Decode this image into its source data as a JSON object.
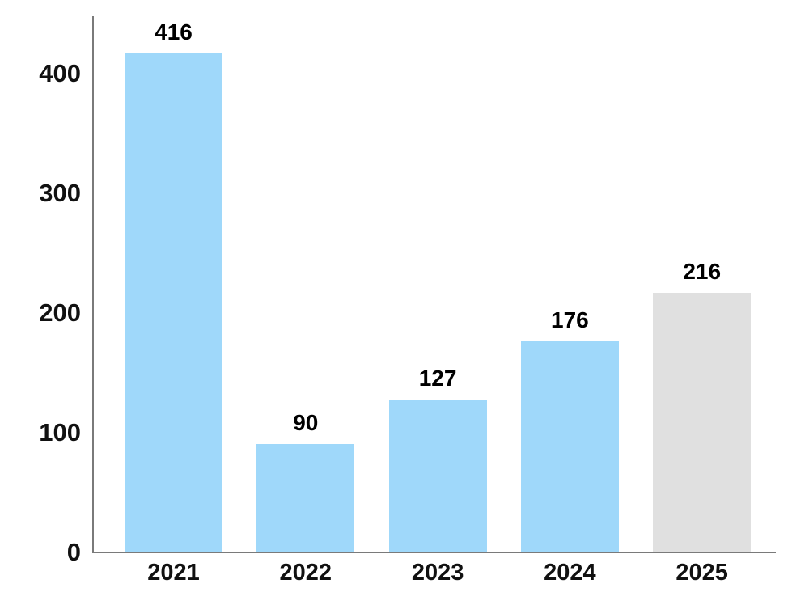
{
  "chart_data": {
    "type": "bar",
    "categories": [
      "2021",
      "2022",
      "2023",
      "2024",
      "2025"
    ],
    "values": [
      416,
      90,
      127,
      176,
      216
    ],
    "data_labels": [
      "416",
      "90",
      "127",
      "176",
      "216"
    ],
    "title": "",
    "xlabel": "",
    "ylabel": "",
    "ylim": [
      0,
      447
    ],
    "yticks": [
      0,
      100,
      200,
      300,
      400
    ],
    "ytick_labels": [
      "0",
      "100",
      "200",
      "300",
      "400"
    ],
    "grid": false,
    "legend": "none",
    "bar_colors": [
      "#9fd8fa",
      "#9fd8fa",
      "#9fd8fa",
      "#9fd8fa",
      "#e0e0e0"
    ],
    "highlighted_category": "2025"
  },
  "colors": {
    "bar_blue": "#9fd8fa",
    "bar_gray": "#e0e0e0",
    "axis": "#7a7a7a",
    "text": "#000000",
    "background": "#ffffff"
  }
}
